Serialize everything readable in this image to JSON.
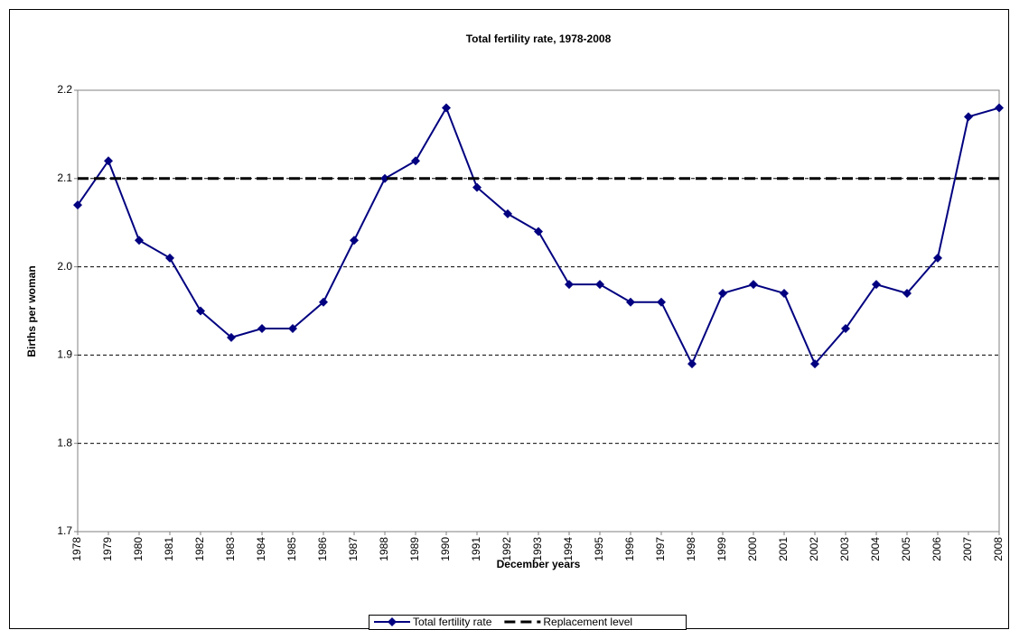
{
  "chart_data": {
    "type": "line",
    "title": "Total fertility rate, 1978-2008",
    "x_label": "December years",
    "y_label": "Births per woman",
    "categories": [
      "1978",
      "1979",
      "1980",
      "1981",
      "1982",
      "1983",
      "1984",
      "1985",
      "1986",
      "1987",
      "1988",
      "1989",
      "1990",
      "1991",
      "1992",
      "1993",
      "1994",
      "1995",
      "1996",
      "1997",
      "1998",
      "1999",
      "2000",
      "2001",
      "2002",
      "2003",
      "2004",
      "2005",
      "2006",
      "2007",
      "2008"
    ],
    "series": [
      {
        "name": "Total fertility rate",
        "color": "#000080",
        "marker": "diamond",
        "values": [
          2.07,
          2.12,
          2.03,
          2.01,
          1.95,
          1.92,
          1.93,
          1.93,
          1.96,
          2.03,
          2.1,
          2.12,
          2.18,
          2.09,
          2.06,
          2.04,
          1.98,
          1.98,
          1.96,
          1.96,
          1.89,
          1.97,
          1.98,
          1.97,
          1.89,
          1.93,
          1.98,
          1.97,
          2.01,
          2.17,
          2.18
        ]
      },
      {
        "name": "Replacement level",
        "color": "#000000",
        "dashed": true,
        "values": [
          2.1,
          2.1,
          2.1,
          2.1,
          2.1,
          2.1,
          2.1,
          2.1,
          2.1,
          2.1,
          2.1,
          2.1,
          2.1,
          2.1,
          2.1,
          2.1,
          2.1,
          2.1,
          2.1,
          2.1,
          2.1,
          2.1,
          2.1,
          2.1,
          2.1,
          2.1,
          2.1,
          2.1,
          2.1,
          2.1,
          2.1
        ]
      }
    ],
    "ylim": [
      1.7,
      2.2
    ],
    "yticks": [
      1.7,
      1.8,
      1.9,
      {
        "value": 2,
        "label": "2.0"
      },
      2.1,
      2.2
    ],
    "grid": true,
    "legend": "bottom"
  }
}
